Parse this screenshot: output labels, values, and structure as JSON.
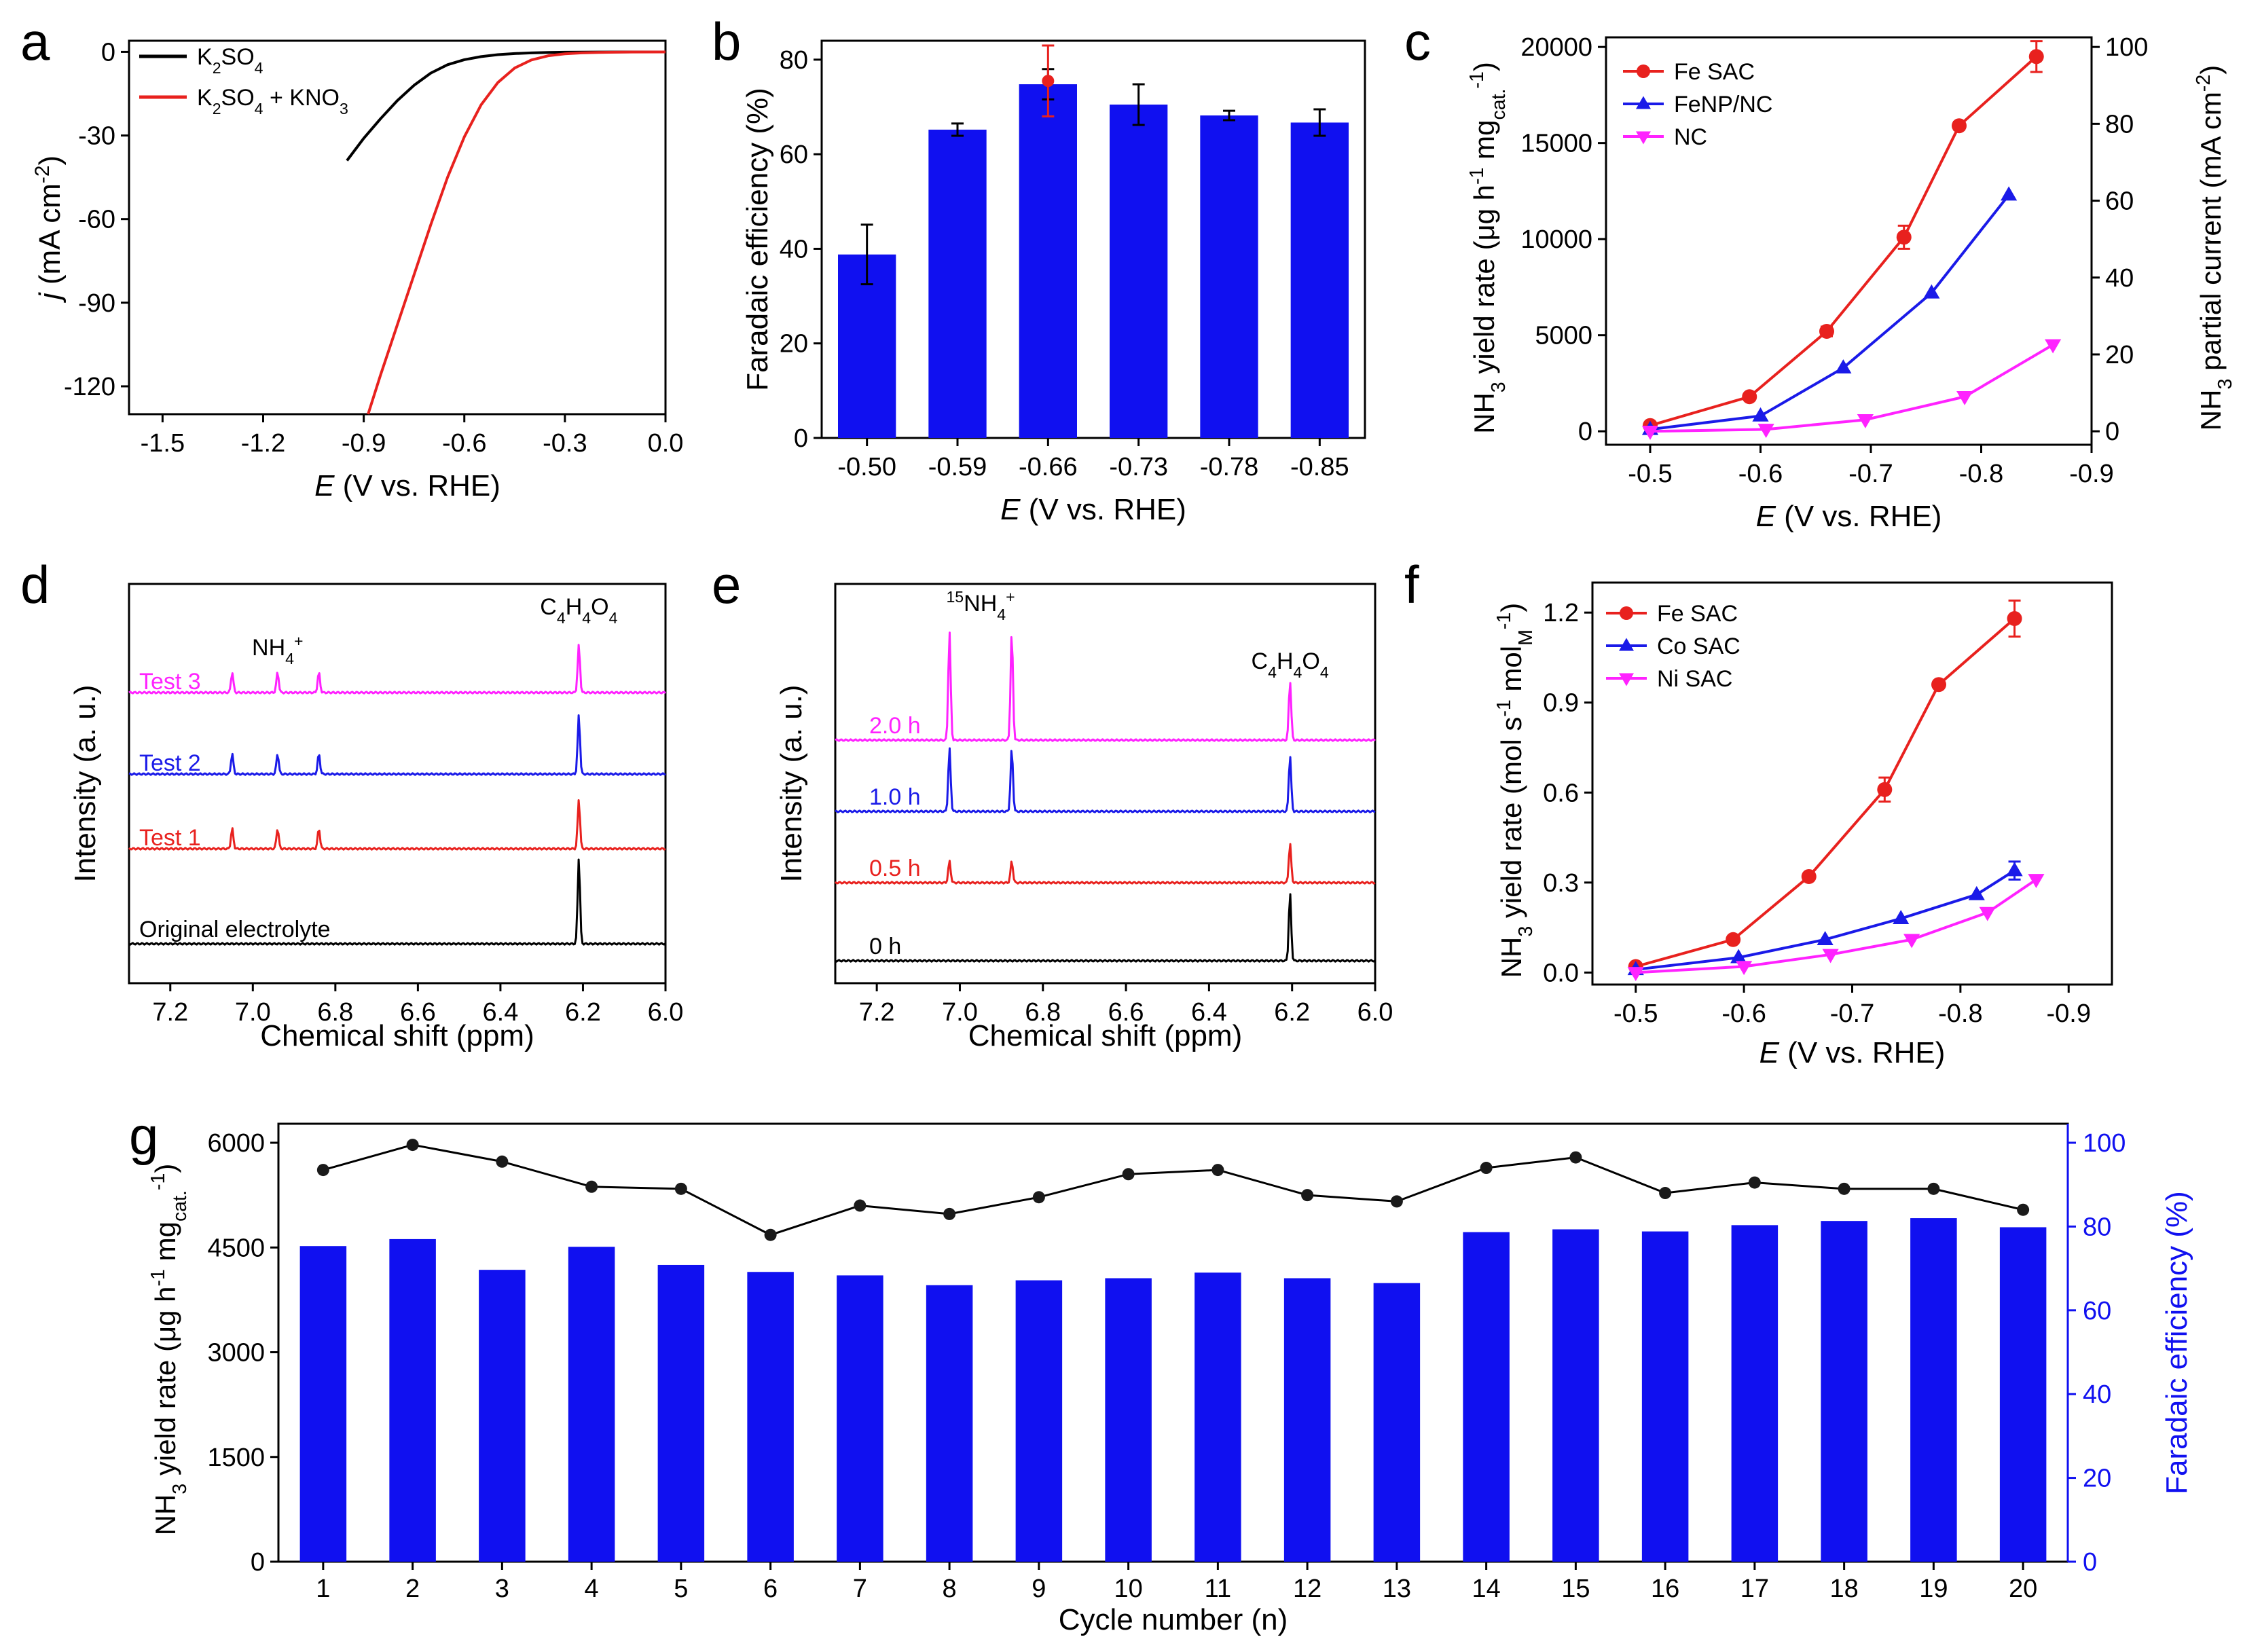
{
  "chart_data": [
    {
      "panel": "a",
      "type": "line",
      "xlabel_italic": "E",
      "xlabel": " (V vs. RHE)",
      "ylabel_italic": "j",
      "ylabel": " (mA cm",
      "ylabel_sup": "-2",
      "ylabel_end": ")",
      "xlim": [
        -1.6,
        0.0
      ],
      "ylim": [
        -130,
        4
      ],
      "xticks": [
        -1.5,
        -1.2,
        -0.9,
        -0.6,
        -0.3,
        0.0
      ],
      "xtick_labels": [
        "-1.5",
        "-1.2",
        "-0.9",
        "-0.6",
        "-0.3",
        "0.0"
      ],
      "yticks": [
        0,
        -30,
        -60,
        -90,
        -120
      ],
      "ytick_labels": [
        "0",
        "-30",
        "-60",
        "-90",
        "-120"
      ],
      "series": [
        {
          "name_parts": [
            "K",
            "2",
            "SO",
            "4"
          ],
          "color": "#000000",
          "x": [
            -0.95,
            -0.9,
            -0.85,
            -0.8,
            -0.75,
            -0.7,
            -0.65,
            -0.6,
            -0.55,
            -0.5,
            -0.45,
            -0.4,
            -0.35,
            -0.3,
            -0.25,
            -0.2,
            -0.1,
            0.0
          ],
          "y": [
            -39,
            -31,
            -24,
            -17.5,
            -12,
            -7.6,
            -4.6,
            -2.8,
            -1.7,
            -1.0,
            -0.6,
            -0.35,
            -0.2,
            -0.12,
            -0.07,
            -0.04,
            -0.02,
            -0.01
          ]
        },
        {
          "name_parts": [
            "K",
            "2",
            "SO",
            "4",
            " + KNO",
            "3"
          ],
          "color": "#e8211e",
          "x": [
            -0.887,
            -0.85,
            -0.8,
            -0.75,
            -0.7,
            -0.65,
            -0.6,
            -0.55,
            -0.5,
            -0.45,
            -0.4,
            -0.35,
            -0.3,
            -0.25,
            -0.2,
            -0.15,
            -0.1,
            0.0
          ],
          "y": [
            -130,
            -116,
            -98,
            -80,
            -62,
            -45,
            -30.5,
            -19,
            -11,
            -5.8,
            -2.9,
            -1.4,
            -0.7,
            -0.35,
            -0.2,
            -0.12,
            -0.06,
            -0.02
          ]
        }
      ]
    },
    {
      "panel": "b",
      "type": "bar",
      "xlabel_italic": "E",
      "xlabel": " (V vs. RHE)",
      "ylabel": "Faradaic efficiency (%)",
      "categories": [
        "-0.50",
        "-0.59",
        "-0.66",
        "-0.73",
        "-0.78",
        "-0.85"
      ],
      "values": [
        38.8,
        65.2,
        74.8,
        70.5,
        68.2,
        66.7
      ],
      "errors": [
        6.3,
        1.3,
        3.2,
        4.3,
        1.0,
        2.8
      ],
      "highlight": {
        "index": 2,
        "value": 75.5,
        "error": 7.5,
        "color": "#e8211e"
      },
      "ylim": [
        0,
        84
      ],
      "yticks": [
        0,
        20,
        40,
        60,
        80
      ],
      "ytick_labels": [
        "0",
        "20",
        "40",
        "60",
        "80"
      ],
      "bar_color": "#1010f0"
    },
    {
      "panel": "c",
      "type": "line",
      "xlabel_italic": "E",
      "xlabel": " (V vs. RHE)",
      "ylabel_parts": [
        "NH",
        "3",
        " yield rate (μg h",
        "-1",
        " mg",
        "cat.",
        "-1",
        ")"
      ],
      "y2label_parts": [
        "NH",
        "3",
        " partial current (mA cm",
        "-2",
        ")"
      ],
      "xlim": [
        -0.46,
        -0.9
      ],
      "ylim": [
        -700,
        20500
      ],
      "y2lim": [
        -3.5,
        102.5
      ],
      "xticks": [
        -0.5,
        -0.6,
        -0.7,
        -0.8,
        -0.9
      ],
      "xtick_labels": [
        "-0.5",
        "-0.6",
        "-0.7",
        "-0.8",
        "-0.9"
      ],
      "yticks": [
        0,
        5000,
        10000,
        15000,
        20000
      ],
      "ytick_labels": [
        "0",
        "5000",
        "10000",
        "15000",
        "20000"
      ],
      "y2ticks": [
        0,
        20,
        40,
        60,
        80,
        100
      ],
      "y2tick_labels": [
        "0",
        "20",
        "40",
        "60",
        "80",
        "100"
      ],
      "legend_position": "top-left",
      "series": [
        {
          "name": "Fe SAC",
          "color": "#e8211e",
          "marker": "circle",
          "x": [
            -0.5,
            -0.59,
            -0.66,
            -0.73,
            -0.78,
            -0.85
          ],
          "y": [
            300,
            1800,
            5200,
            10100,
            15900,
            19500
          ],
          "err": [
            150,
            0,
            250,
            600,
            200,
            800
          ]
        },
        {
          "name": "FeNP/NC",
          "color": "#1a1ae8",
          "marker": "triangle-up",
          "x": [
            -0.5,
            -0.6,
            -0.675,
            -0.755,
            -0.825
          ],
          "y": [
            100,
            800,
            3300,
            7200,
            12300
          ],
          "err": [
            0,
            0,
            0,
            0,
            0
          ]
        },
        {
          "name": "NC",
          "color": "#ff22ff",
          "marker": "triangle-down",
          "x": [
            -0.5,
            -0.605,
            -0.695,
            -0.785,
            -0.865
          ],
          "y": [
            0,
            100,
            600,
            1800,
            4500
          ],
          "err": [
            0,
            0,
            0,
            0,
            0
          ]
        }
      ]
    },
    {
      "panel": "d",
      "type": "line",
      "xlabel": "Chemical shift (ppm)",
      "ylabel": "Intensity (a. u.)",
      "xlim": [
        7.3,
        6.0
      ],
      "xticks": [
        7.2,
        7.0,
        6.8,
        6.6,
        6.4,
        6.2,
        6.0
      ],
      "xtick_labels": [
        "7.2",
        "7.0",
        "6.8",
        "6.6",
        "6.4",
        "6.2",
        "6.0"
      ],
      "nh4_parts": [
        "NH",
        "4",
        "+"
      ],
      "c4_parts": [
        "C",
        "4",
        "H",
        "4",
        "O",
        "4"
      ],
      "peaks_nh4": [
        7.05,
        6.94,
        6.84
      ],
      "peak_c4": 6.21,
      "series": [
        {
          "name": "Test 3",
          "color": "#ff22ff",
          "nh4_height": 30,
          "c4_height": 70
        },
        {
          "name": "Test 2",
          "color": "#1a1ae8",
          "nh4_height": 30,
          "c4_height": 87
        },
        {
          "name": "Test 1",
          "color": "#e8211e",
          "nh4_height": 30,
          "c4_height": 73
        },
        {
          "name": "Original electrolyte",
          "color": "#000000",
          "nh4_height": 0,
          "c4_height": 127
        }
      ]
    },
    {
      "panel": "e",
      "type": "line",
      "xlabel": "Chemical shift (ppm)",
      "ylabel": "Intensity (a. u.)",
      "xlim": [
        7.3,
        6.0
      ],
      "xticks": [
        7.2,
        7.0,
        6.8,
        6.6,
        6.4,
        6.2,
        6.0
      ],
      "xtick_labels": [
        "7.2",
        "7.0",
        "6.8",
        "6.6",
        "6.4",
        "6.2",
        "6.0"
      ],
      "n15_parts": [
        "15",
        "NH",
        "4",
        "+"
      ],
      "c4_parts": [
        "C",
        "4",
        "H",
        "4",
        "O",
        "4"
      ],
      "peaks_15nh4": [
        7.025,
        6.875
      ],
      "peak_c4": 6.205,
      "series": [
        {
          "name": "2.0 h",
          "color": "#ff22ff",
          "nh4_height": 160,
          "c4_height": 88
        },
        {
          "name": "1.0 h",
          "color": "#1a1ae8",
          "nh4_height": 93,
          "c4_height": 83
        },
        {
          "name": "0.5 h",
          "color": "#e8211e",
          "nh4_height": 32,
          "c4_height": 58
        },
        {
          "name": "0 h",
          "color": "#000000",
          "nh4_height": 0,
          "c4_height": 100
        }
      ]
    },
    {
      "panel": "f",
      "type": "line",
      "xlabel_italic": "E",
      "xlabel": " (V vs. RHE)",
      "ylabel_parts": [
        "NH",
        "3",
        " yield rate (mol s",
        "-1",
        " mol",
        "M",
        "-1",
        ")"
      ],
      "xlim": [
        -0.46,
        -0.94
      ],
      "ylim": [
        -0.04,
        1.3
      ],
      "xticks": [
        -0.5,
        -0.6,
        -0.7,
        -0.8,
        -0.9
      ],
      "xtick_labels": [
        "-0.5",
        "-0.6",
        "-0.7",
        "-0.8",
        "-0.9"
      ],
      "yticks": [
        0.0,
        0.3,
        0.6,
        0.9,
        1.2
      ],
      "ytick_labels": [
        "0.0",
        "0.3",
        "0.6",
        "0.9",
        "1.2"
      ],
      "legend_position": "top-left",
      "series": [
        {
          "name": "Fe SAC",
          "color": "#e8211e",
          "marker": "circle",
          "x": [
            -0.5,
            -0.59,
            -0.66,
            -0.73,
            -0.78,
            -0.85
          ],
          "y": [
            0.02,
            0.11,
            0.32,
            0.61,
            0.96,
            1.18
          ],
          "err": [
            0,
            0,
            0,
            0.04,
            0,
            0.06
          ]
        },
        {
          "name": "Co SAC",
          "color": "#1a1ae8",
          "marker": "triangle-up",
          "x": [
            -0.5,
            -0.595,
            -0.675,
            -0.745,
            -0.815,
            -0.85
          ],
          "y": [
            0.01,
            0.05,
            0.11,
            0.18,
            0.26,
            0.34
          ],
          "err": [
            0,
            0,
            0,
            0,
            0,
            0.03
          ]
        },
        {
          "name": "Ni SAC",
          "color": "#ff22ff",
          "marker": "triangle-down",
          "x": [
            -0.5,
            -0.6,
            -0.68,
            -0.755,
            -0.825,
            -0.87
          ],
          "y": [
            0.0,
            0.02,
            0.06,
            0.11,
            0.2,
            0.31
          ],
          "err": [
            0,
            0,
            0,
            0,
            0,
            0
          ]
        }
      ]
    },
    {
      "panel": "g",
      "type": "bar",
      "xlabel": "Cycle number (n)",
      "ylabel_parts": [
        "NH",
        "3",
        " yield rate (μg h",
        "-1",
        " mg",
        "cat.",
        "-1",
        ")"
      ],
      "y2label": "Faradaic efficiency (%)",
      "categories": [
        "1",
        "2",
        "3",
        "4",
        "5",
        "6",
        "7",
        "8",
        "9",
        "10",
        "11",
        "12",
        "13",
        "14",
        "15",
        "16",
        "17",
        "18",
        "19",
        "20"
      ],
      "values": [
        4520,
        4620,
        4180,
        4510,
        4250,
        4150,
        4100,
        3960,
        4030,
        4060,
        4140,
        4060,
        3990,
        4720,
        4760,
        4730,
        4820,
        4880,
        4920,
        4790
      ],
      "fe_values": [
        93.5,
        99.5,
        95.5,
        89.5,
        89,
        78,
        85,
        83,
        87,
        92.5,
        93.5,
        87.5,
        86,
        94,
        96.5,
        88,
        90.5,
        89,
        89,
        84
      ],
      "ylim": [
        0,
        6000
      ],
      "yticks": [
        0,
        1500,
        3000,
        4500,
        6000
      ],
      "ytick_labels": [
        "0",
        "1500",
        "3000",
        "4500",
        "6000"
      ],
      "y2lim": [
        0,
        100
      ],
      "y2ticks": [
        0,
        20,
        40,
        60,
        80,
        100
      ],
      "y2tick_labels": [
        "0",
        "20",
        "40",
        "60",
        "80",
        "100"
      ],
      "bar_color": "#1010f0",
      "y2_color": "#1010f0"
    }
  ],
  "panel_letters": {
    "a": "a",
    "b": "b",
    "c": "c",
    "d": "d",
    "e": "e",
    "f": "f",
    "g": "g"
  }
}
